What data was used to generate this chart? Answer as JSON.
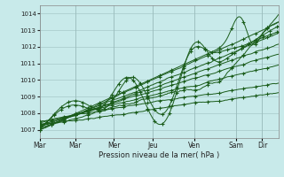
{
  "xlabel": "Pression niveau de la mer( hPa )",
  "bg_color": "#c8eaea",
  "line_color": "#1a5c1a",
  "grid_color": "#99bbbb",
  "ylim": [
    1006.5,
    1014.5
  ],
  "ytick_values": [
    1007,
    1008,
    1009,
    1010,
    1011,
    1012,
    1013,
    1014
  ],
  "day_x": [
    0,
    55,
    115,
    175,
    240,
    305,
    345
  ],
  "day_labels": [
    "Mar",
    "Mar",
    "Mer",
    "Jeu",
    "Ven",
    "Sam",
    "Dir"
  ],
  "xlim": [
    0,
    370
  ]
}
